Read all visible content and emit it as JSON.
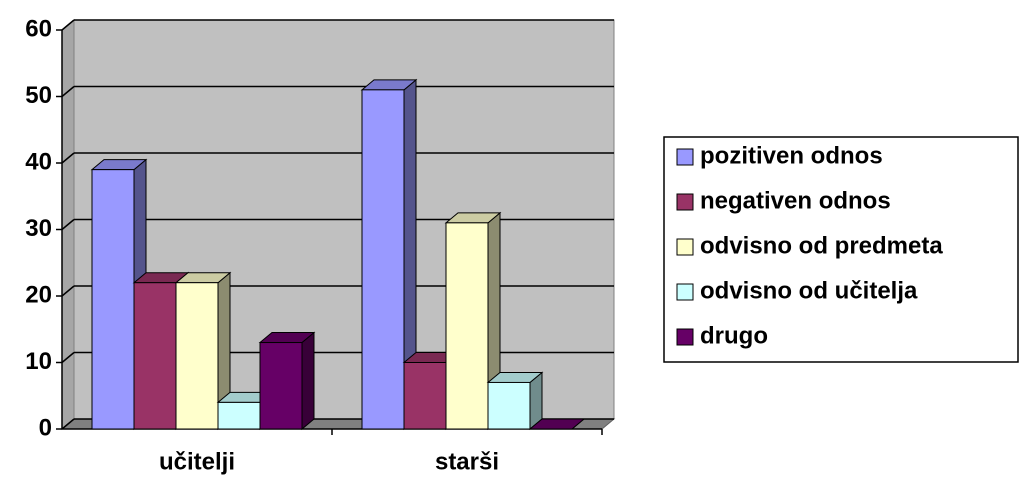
{
  "chart_data": {
    "type": "bar",
    "categories": [
      "učitelji",
      "starši"
    ],
    "series": [
      {
        "name": "pozitiven odnos",
        "color": "#9999ff",
        "values": [
          39,
          51
        ]
      },
      {
        "name": "negativen odnos",
        "color": "#993366",
        "values": [
          22,
          10
        ]
      },
      {
        "name": "odvisno od predmeta",
        "color": "#ffffcc",
        "values": [
          22,
          31
        ]
      },
      {
        "name": "odvisno od učitelja",
        "color": "#ccffff",
        "values": [
          4,
          7
        ]
      },
      {
        "name": "drugo",
        "color": "#660066",
        "values": [
          13,
          0
        ]
      }
    ],
    "ylim": [
      0,
      60
    ],
    "yticks": [
      0,
      10,
      20,
      30,
      40,
      50,
      60
    ],
    "grid": true,
    "legend": "right"
  }
}
